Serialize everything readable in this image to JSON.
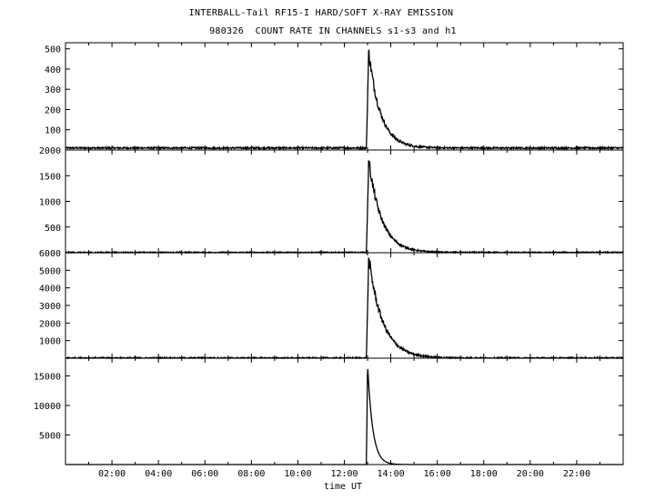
{
  "title_line1": "INTERBALL-Tail RF15-I HARD/SOFT X-RAY EMISSION",
  "title_line2": "980326  COUNT RATE IN CHANNELS s1-s3 and h1",
  "chart_data": [
    {
      "type": "line",
      "panel": "s1",
      "ylim": [
        0,
        530
      ],
      "yticks": [
        100,
        200,
        300,
        400,
        500
      ],
      "yticklabels": [
        "100",
        "200",
        "300",
        "400",
        "500"
      ],
      "baseline": 10,
      "peak": 490,
      "noise": 4,
      "rise_start": 12.95,
      "peak_time": 13.05,
      "decay_tau": 0.5
    },
    {
      "type": "line",
      "panel": "s2",
      "ylim": [
        0,
        2000
      ],
      "yticks": [
        500,
        1000,
        1500,
        2000
      ],
      "yticklabels": [
        "500",
        "1000",
        "1500",
        "2000"
      ],
      "baseline": 5,
      "peak": 1800,
      "noise": 12,
      "rise_start": 12.95,
      "peak_time": 13.05,
      "decay_tau": 0.55
    },
    {
      "type": "line",
      "panel": "s3",
      "ylim": [
        0,
        6000
      ],
      "yticks": [
        1000,
        2000,
        3000,
        4000,
        5000,
        6000
      ],
      "yticklabels": [
        "1000",
        "2000",
        "3000",
        "4000",
        "5000",
        "6000"
      ],
      "baseline": 10,
      "peak": 5700,
      "noise": 40,
      "rise_start": 12.95,
      "peak_time": 13.05,
      "decay_tau": 0.6
    },
    {
      "type": "line",
      "panel": "h1",
      "ylim": [
        0,
        18000
      ],
      "yticks": [
        5000,
        10000,
        15000
      ],
      "yticklabels": [
        "5000",
        "10000",
        "15000"
      ],
      "baseline": 0,
      "peak": 17000,
      "noise": 0,
      "rise_start": 12.95,
      "peak_time": 13.0,
      "decay_tau": 0.22
    }
  ],
  "x_axis": {
    "label": "time UT",
    "xlim": [
      0,
      24
    ],
    "ticks": [
      2,
      4,
      6,
      8,
      10,
      12,
      14,
      16,
      18,
      20,
      22
    ],
    "ticklabels": [
      "02:00",
      "04:00",
      "06:00",
      "08:00",
      "10:00",
      "12:00",
      "14:00",
      "16:00",
      "18:00",
      "20:00",
      "22:00"
    ]
  }
}
